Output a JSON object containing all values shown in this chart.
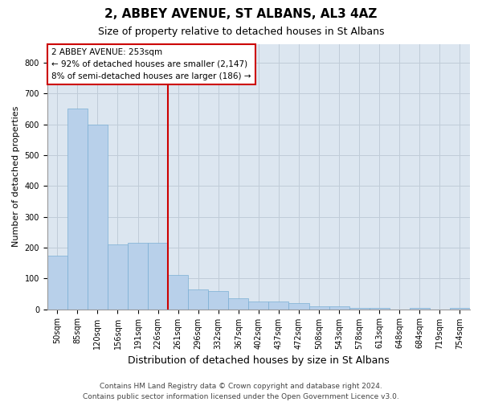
{
  "title1": "2, ABBEY AVENUE, ST ALBANS, AL3 4AZ",
  "title2": "Size of property relative to detached houses in St Albans",
  "xlabel": "Distribution of detached houses by size in St Albans",
  "ylabel": "Number of detached properties",
  "bar_color": "#b8d0ea",
  "bar_edge_color": "#7aafd4",
  "background_color": "#dce6f0",
  "categories": [
    "50sqm",
    "85sqm",
    "120sqm",
    "156sqm",
    "191sqm",
    "226sqm",
    "261sqm",
    "296sqm",
    "332sqm",
    "367sqm",
    "402sqm",
    "437sqm",
    "472sqm",
    "508sqm",
    "543sqm",
    "578sqm",
    "613sqm",
    "648sqm",
    "684sqm",
    "719sqm",
    "754sqm"
  ],
  "values": [
    175,
    650,
    600,
    210,
    215,
    215,
    110,
    65,
    60,
    35,
    25,
    25,
    20,
    10,
    10,
    5,
    5,
    0,
    5,
    0,
    5
  ],
  "property_bin_index": 6,
  "vline_color": "#cc0000",
  "annotation_text": "2 ABBEY AVENUE: 253sqm\n← 92% of detached houses are smaller (2,147)\n8% of semi-detached houses are larger (186) →",
  "annotation_box_color": "#cc0000",
  "footer_text": "Contains HM Land Registry data © Crown copyright and database right 2024.\nContains public sector information licensed under the Open Government Licence v3.0.",
  "ylim": [
    0,
    860
  ],
  "yticks": [
    0,
    100,
    200,
    300,
    400,
    500,
    600,
    700,
    800
  ],
  "grid_color": "#c0ccd8",
  "title1_fontsize": 11,
  "title2_fontsize": 9,
  "ylabel_fontsize": 8,
  "xlabel_fontsize": 9,
  "tick_fontsize": 7,
  "annot_fontsize": 7.5,
  "footer_fontsize": 6.5,
  "figsize": [
    6.0,
    5.0
  ],
  "dpi": 100
}
